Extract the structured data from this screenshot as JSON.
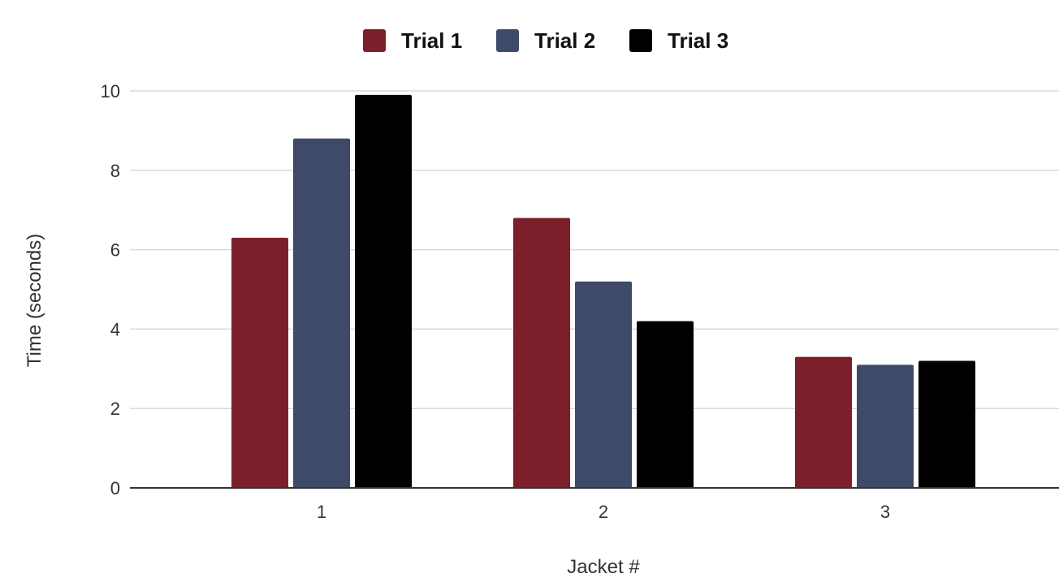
{
  "chart_data": {
    "type": "bar",
    "title": "",
    "xlabel": "Jacket #",
    "ylabel": "Time (seconds)",
    "categories": [
      "1",
      "2",
      "3"
    ],
    "series": [
      {
        "name": "Trial 1",
        "color": "#7b1f2a",
        "values": [
          6.3,
          6.8,
          3.3
        ]
      },
      {
        "name": "Trial 2",
        "color": "#3f4a69",
        "values": [
          8.8,
          5.2,
          3.1
        ]
      },
      {
        "name": "Trial 3",
        "color": "#000000",
        "values": [
          9.9,
          4.2,
          3.2
        ]
      }
    ],
    "ylim": [
      0,
      10
    ],
    "yticks": [
      "0",
      "2",
      "4",
      "6",
      "8",
      "10"
    ],
    "grid": true,
    "legend_position": "top-center"
  }
}
